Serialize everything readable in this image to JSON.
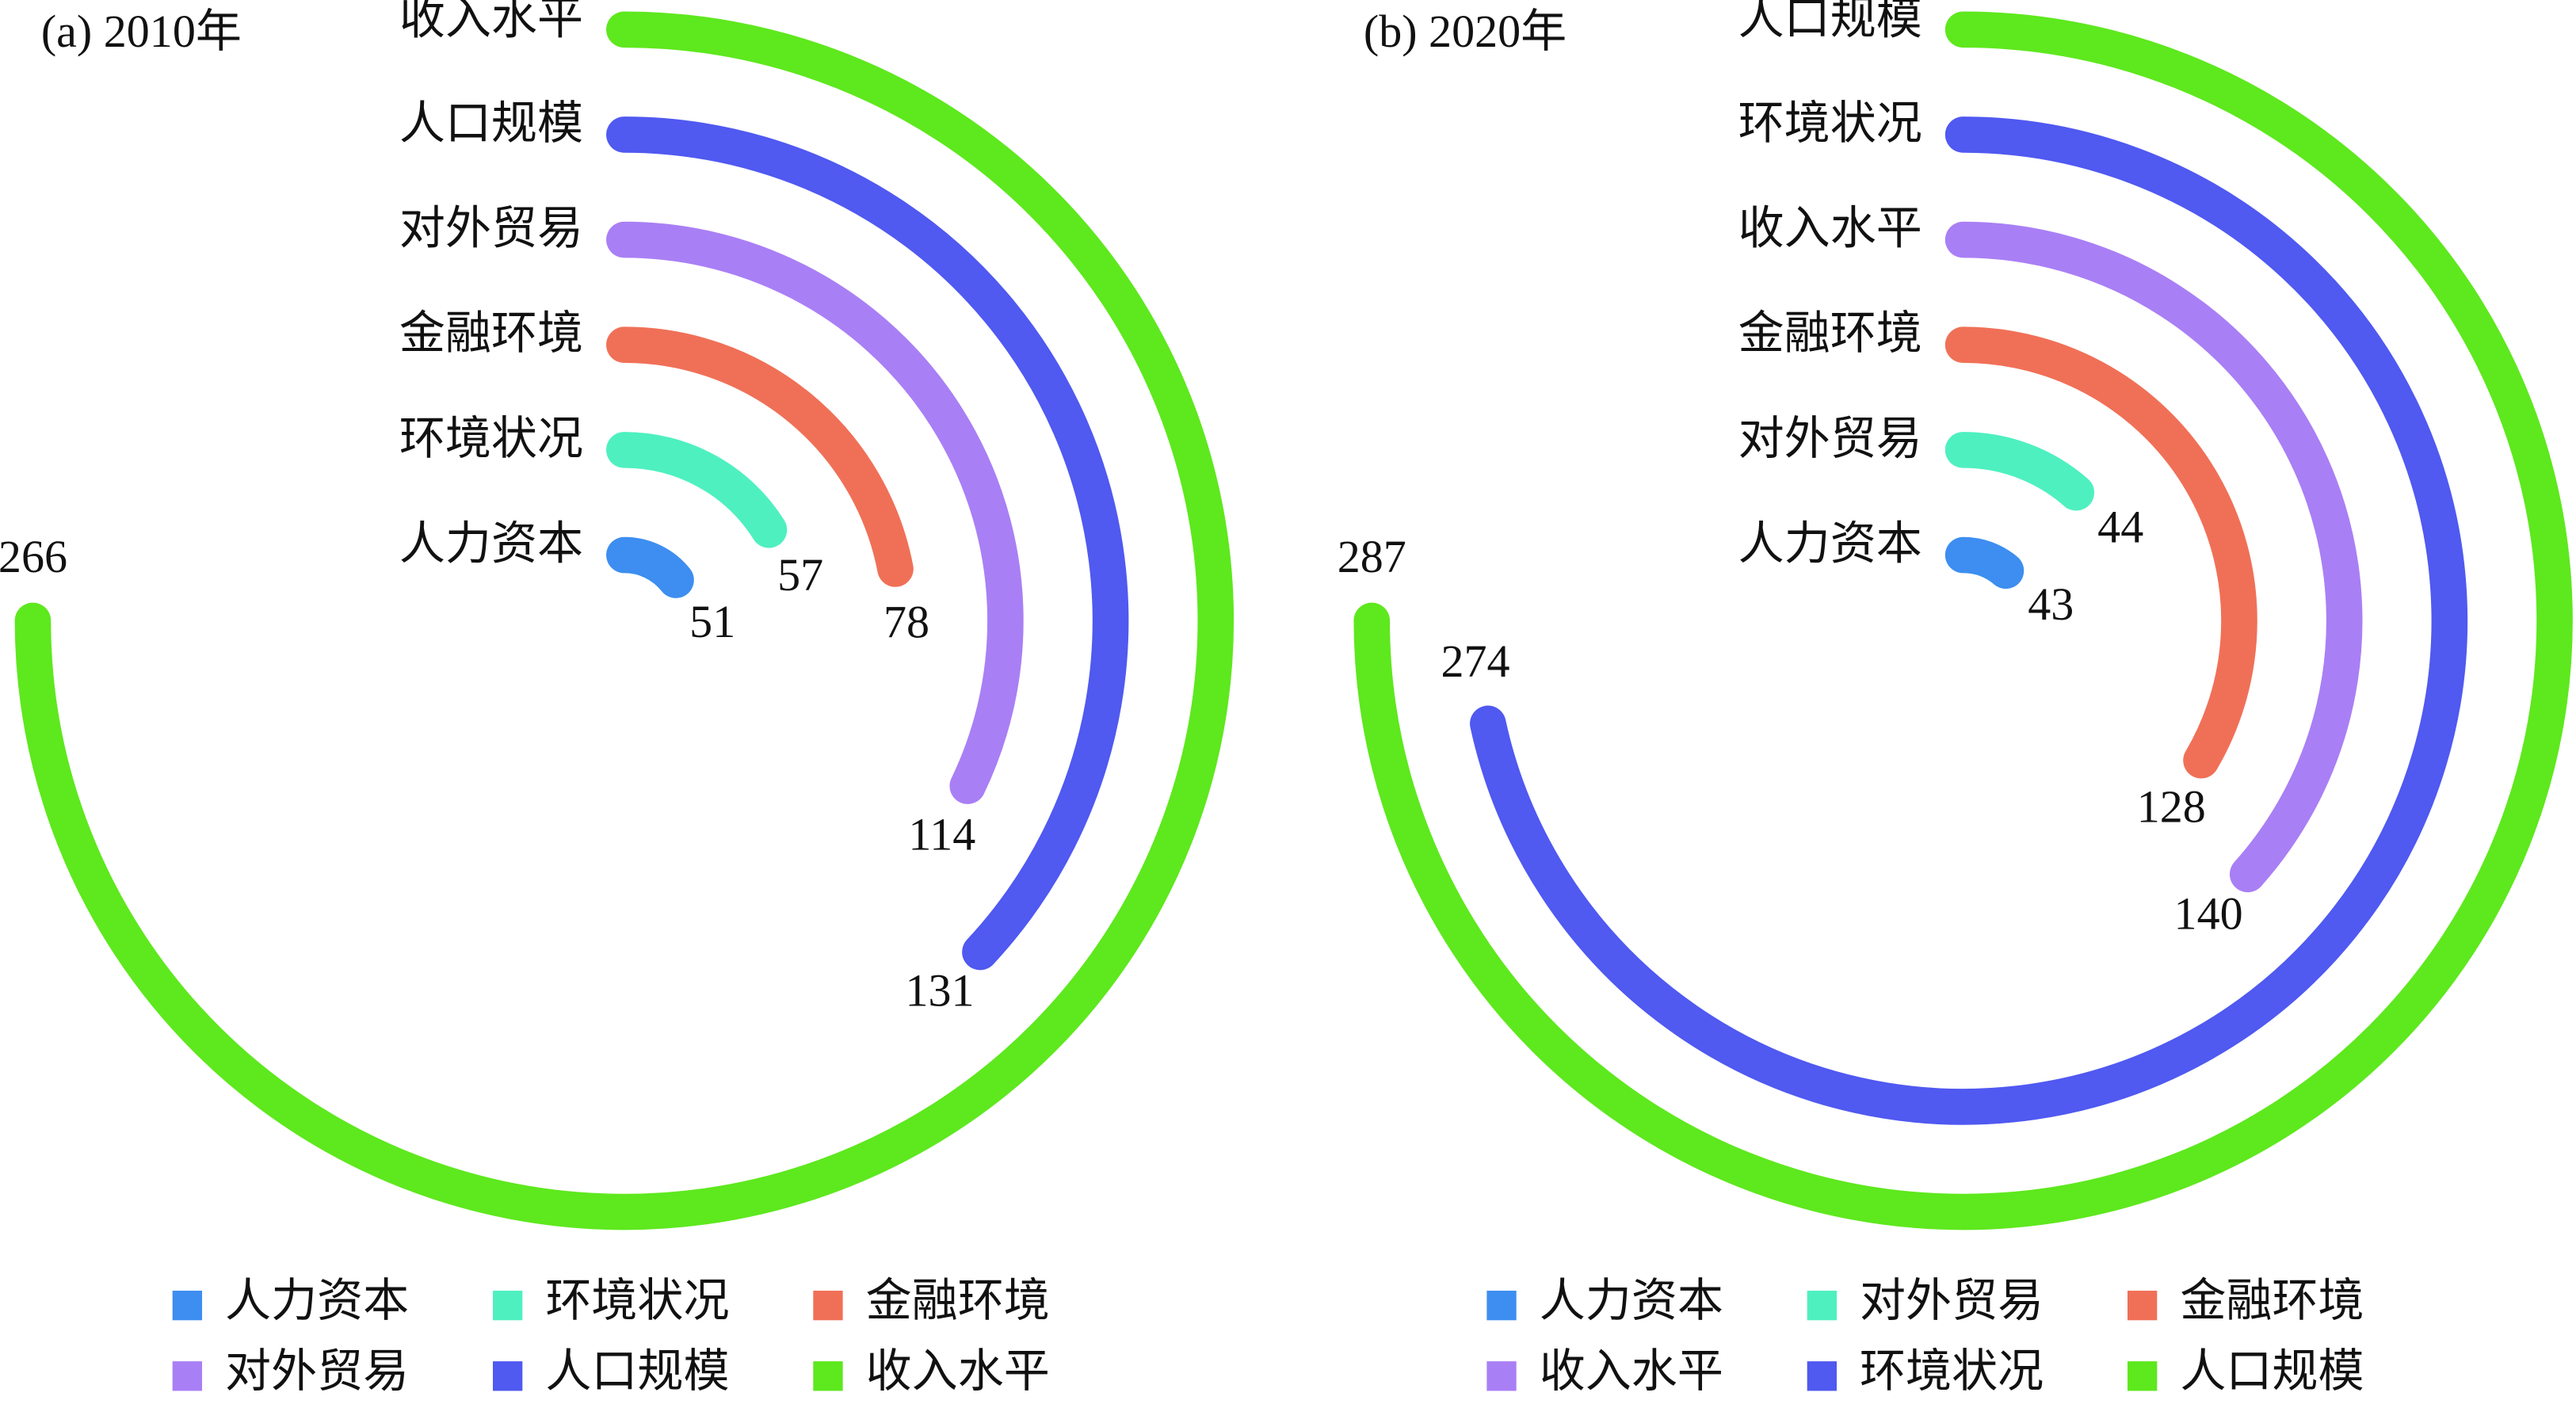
{
  "chart_data": [
    {
      "type": "radial-bar",
      "title": "(a) 2010年",
      "categories": [
        "人力资本",
        "环境状况",
        "金融环境",
        "对外贸易",
        "人口规模",
        "收入水平"
      ],
      "values": [
        51,
        57,
        78,
        114,
        131,
        266
      ],
      "colors": [
        "#3d8ef0",
        "#4ef0c0",
        "#f07057",
        "#a97ff5",
        "#5059f0",
        "#5ee81e"
      ]
    },
    {
      "type": "radial-bar",
      "title": "(b) 2020年",
      "categories": [
        "人力资本",
        "对外贸易",
        "金融环境",
        "收入水平",
        "环境状况",
        "人口规模"
      ],
      "values": [
        43,
        44,
        128,
        140,
        274,
        287
      ],
      "colors": [
        "#3d8ef0",
        "#4ef0c0",
        "#f07057",
        "#a97ff5",
        "#5059f0",
        "#5ee81e"
      ]
    }
  ]
}
